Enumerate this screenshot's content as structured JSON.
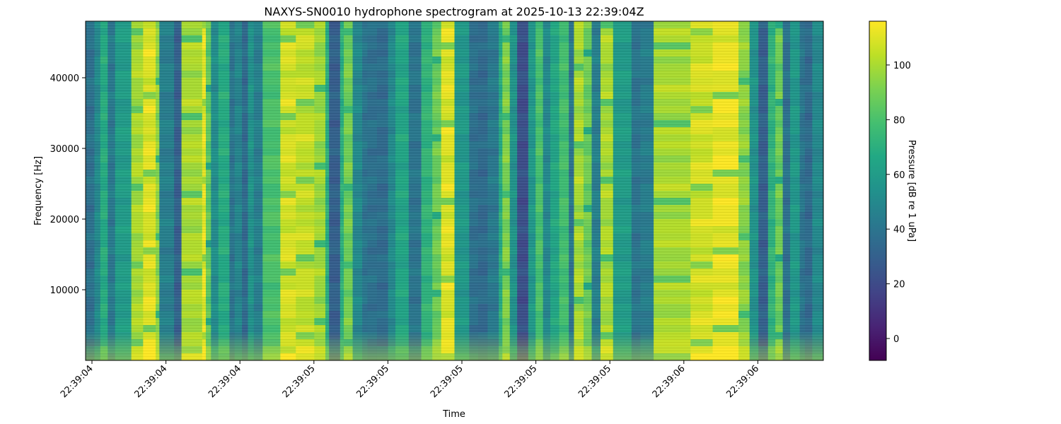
{
  "chart_data": {
    "type": "heatmap",
    "title": "NAXYS-SN0010 hydrophone spectrogram at 2025-10-13 22:39:04Z",
    "xlabel": "Time",
    "ylabel": "Frequency [Hz]",
    "colorbar_label": "Pressure [dB re 1 uPa]",
    "colormap": "viridis",
    "x_tick_labels": [
      "22:39:04",
      "22:39:04",
      "22:39:04",
      "22:39:05",
      "22:39:05",
      "22:39:05",
      "22:39:05",
      "22:39:05",
      "22:39:06",
      "22:39:06"
    ],
    "y_ticks": [
      10000,
      20000,
      30000,
      40000
    ],
    "y_tick_labels": [
      "10000",
      "20000",
      "30000",
      "40000"
    ],
    "ylim": [
      0,
      48000
    ],
    "colorbar_ticks": [
      0,
      20,
      40,
      60,
      80,
      100
    ],
    "colorbar_tick_labels": [
      "0",
      "20",
      "40",
      "60",
      "80",
      "100"
    ],
    "clim": [
      -8,
      116
    ],
    "time_columns_db": [
      38,
      50,
      68,
      42,
      60,
      100,
      110,
      95,
      45,
      30,
      100,
      112,
      85,
      52,
      68,
      40,
      48,
      35,
      55,
      45,
      80,
      108,
      105,
      98,
      70,
      30,
      70,
      90,
      50,
      40,
      38,
      36,
      50,
      65,
      40,
      72,
      88,
      110,
      58,
      38,
      35,
      42,
      68,
      92,
      55,
      22,
      58,
      80,
      50,
      65,
      78,
      40,
      100,
      88,
      45,
      100,
      60,
      40,
      44,
      100,
      108,
      112,
      95,
      55,
      30,
      72,
      88,
      38,
      58,
      40,
      35,
      50
    ],
    "column_edges_frac": [
      0,
      0.012,
      0.02,
      0.03,
      0.04,
      0.062,
      0.078,
      0.095,
      0.1,
      0.12,
      0.13,
      0.158,
      0.163,
      0.17,
      0.18,
      0.195,
      0.202,
      0.212,
      0.22,
      0.228,
      0.24,
      0.264,
      0.285,
      0.31,
      0.325,
      0.33,
      0.345,
      0.35,
      0.362,
      0.375,
      0.382,
      0.395,
      0.41,
      0.42,
      0.438,
      0.455,
      0.47,
      0.482,
      0.5,
      0.52,
      0.532,
      0.545,
      0.56,
      0.565,
      0.575,
      0.585,
      0.6,
      0.61,
      0.62,
      0.63,
      0.642,
      0.655,
      0.662,
      0.675,
      0.686,
      0.698,
      0.715,
      0.74,
      0.752,
      0.77,
      0.82,
      0.85,
      0.885,
      0.9,
      0.912,
      0.925,
      0.935,
      0.945,
      0.955,
      0.968,
      0.975,
      0.985,
      1.0
    ]
  }
}
